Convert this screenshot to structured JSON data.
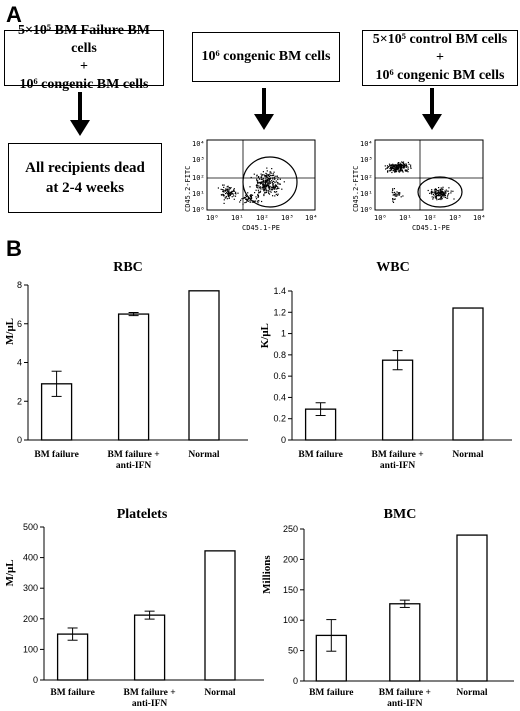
{
  "panel_a": {
    "letter": "A",
    "box_left_lines": [
      "5×10⁵ BM Failure BM cells",
      "+",
      "10⁶ congenic BM cells"
    ],
    "box_mid_lines": [
      "10⁶ congenic BM cells"
    ],
    "box_right_lines": [
      "5×10⁵ control BM cells",
      "+",
      "10⁶ congenic BM cells"
    ],
    "outcome_lines": [
      "All recipients dead",
      "at 2-4 weeks"
    ],
    "flow_plots": [
      {
        "x_label": "CD45.1-PE",
        "y_label": "CD45.2-FITC",
        "x_ticks": [
          "10⁰",
          "10¹",
          "10²",
          "10³",
          "10⁴"
        ],
        "y_ticks": [
          "10⁰",
          "10¹",
          "10²",
          "10³",
          "10⁴"
        ]
      },
      {
        "x_label": "CD45.1-PE",
        "y_label": "CD45.2-FITC",
        "x_ticks": [
          "10⁰",
          "10¹",
          "10²",
          "10³",
          "10⁴"
        ],
        "y_ticks": [
          "10⁰",
          "10¹",
          "10²",
          "10³",
          "10⁴"
        ]
      }
    ]
  },
  "panel_b": {
    "letter": "B"
  },
  "chart_data": [
    {
      "type": "bar",
      "title": "RBC",
      "ylabel": "M/μL",
      "categories": [
        "BM failure",
        "BM failure +|anti-IFN",
        "Normal"
      ],
      "values": [
        2.9,
        6.5,
        7.7
      ],
      "errors": [
        0.65,
        0.08,
        0
      ],
      "ylim": [
        0,
        8
      ],
      "yticks": [
        0,
        2,
        4,
        6,
        8
      ],
      "ytick_labels": [
        "0",
        "2",
        "4",
        "6",
        "8"
      ]
    },
    {
      "type": "bar",
      "title": "WBC",
      "ylabel": "K/μL",
      "categories": [
        "BM failure",
        "BM failure +|anti-IFN",
        "Normal"
      ],
      "values": [
        0.29,
        0.75,
        1.24
      ],
      "errors": [
        0.06,
        0.09,
        0
      ],
      "ylim": [
        0,
        1.4
      ],
      "yticks": [
        0,
        0.2,
        0.4,
        0.6,
        0.8,
        1,
        1.2,
        1.4
      ],
      "ytick_labels": [
        "0",
        "0.2",
        "0.4",
        "0.6",
        "0.8",
        "1",
        "1.2",
        "1.4"
      ]
    },
    {
      "type": "bar",
      "title": "Platelets",
      "ylabel": "M/μL",
      "categories": [
        "BM failure",
        "BM failure +|anti-IFN",
        "Normal"
      ],
      "values": [
        150,
        212,
        422
      ],
      "errors": [
        20,
        13,
        0
      ],
      "ylim": [
        0,
        500
      ],
      "yticks": [
        0,
        100,
        200,
        300,
        400,
        500
      ],
      "ytick_labels": [
        "0",
        "100",
        "200",
        "300",
        "400",
        "500"
      ]
    },
    {
      "type": "bar",
      "title": "BMC",
      "ylabel": "Millions",
      "categories": [
        "BM failure",
        "BM failure +|anti-IFN",
        "Normal"
      ],
      "values": [
        75,
        127,
        240
      ],
      "errors": [
        26,
        6,
        0
      ],
      "ylim": [
        0,
        250
      ],
      "yticks": [
        0,
        50,
        100,
        150,
        200,
        250
      ],
      "ytick_labels": [
        "0",
        "50",
        "100",
        "150",
        "200",
        "250"
      ]
    }
  ]
}
